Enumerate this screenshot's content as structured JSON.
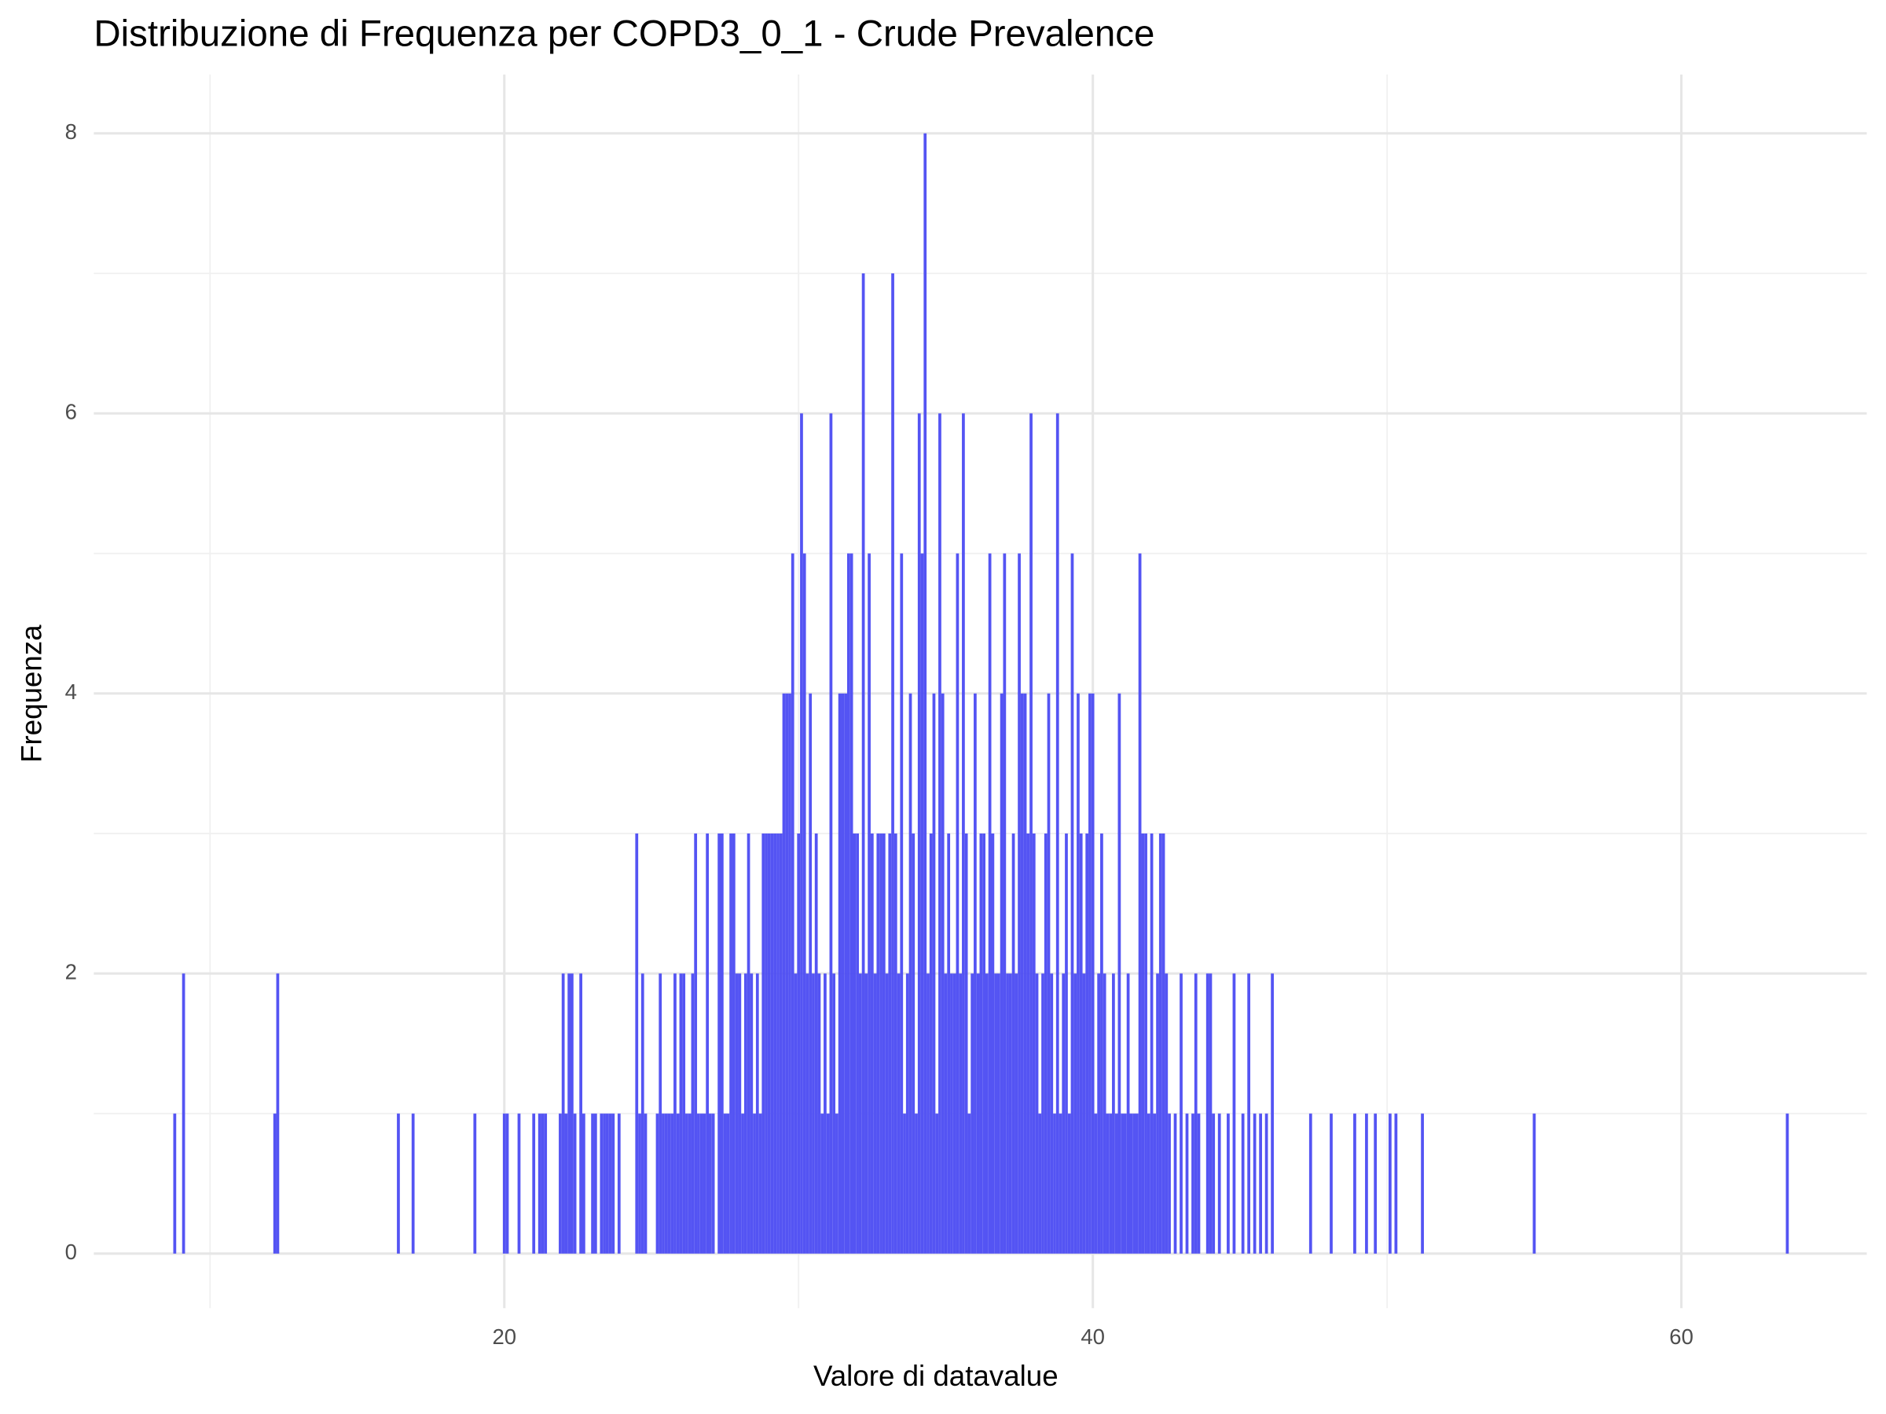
{
  "chart_data": {
    "type": "histogram",
    "title": "Distribuzione di Frequenza per COPD3_0_1 - Crude Prevalence",
    "x_label": "Valore di datavalue",
    "y_label": "Frequenza",
    "color": "#4b4bf2",
    "grid": true,
    "xlim": [
      6.05,
      66.3
    ],
    "xticks": [
      20,
      40,
      60
    ],
    "ylim": [
      -0.39,
      8.42
    ],
    "yticks": [
      0,
      2,
      4,
      6,
      8
    ],
    "x": [
      8.8,
      9.1,
      12.2,
      12.3,
      16.4,
      16.9,
      19.0,
      20.0,
      20.1,
      20.5,
      21.0,
      21.2,
      21.3,
      21.4,
      21.9,
      22.0,
      22.1,
      22.2,
      22.3,
      22.4,
      22.6,
      22.7,
      23.0,
      23.1,
      23.3,
      23.4,
      23.5,
      23.6,
      23.7,
      23.9,
      24.5,
      24.6,
      24.7,
      24.8,
      25.2,
      25.3,
      25.4,
      25.5,
      25.6,
      25.7,
      25.8,
      25.9,
      26.0,
      26.1,
      26.2,
      26.3,
      26.4,
      26.5,
      26.6,
      26.7,
      26.8,
      26.9,
      27.0,
      27.1,
      27.3,
      27.4,
      27.5,
      27.6,
      27.7,
      27.8,
      27.9,
      28.0,
      28.1,
      28.2,
      28.3,
      28.4,
      28.5,
      28.6,
      28.7,
      28.8,
      28.9,
      29.0,
      29.1,
      29.2,
      29.3,
      29.4,
      29.5,
      29.6,
      29.7,
      29.8,
      29.9,
      30.0,
      30.1,
      30.2,
      30.3,
      30.4,
      30.5,
      30.6,
      30.7,
      30.8,
      30.9,
      31.0,
      31.1,
      31.2,
      31.3,
      31.4,
      31.5,
      31.6,
      31.7,
      31.8,
      31.9,
      32.0,
      32.1,
      32.2,
      32.3,
      32.4,
      32.5,
      32.6,
      32.7,
      32.8,
      32.9,
      33.0,
      33.1,
      33.2,
      33.3,
      33.4,
      33.5,
      33.6,
      33.7,
      33.8,
      33.9,
      34.0,
      34.1,
      34.2,
      34.3,
      34.4,
      34.5,
      34.6,
      34.7,
      34.8,
      34.9,
      35.0,
      35.1,
      35.2,
      35.3,
      35.4,
      35.5,
      35.6,
      35.7,
      35.8,
      35.9,
      36.0,
      36.1,
      36.2,
      36.3,
      36.4,
      36.5,
      36.6,
      36.7,
      36.8,
      36.9,
      37.0,
      37.1,
      37.2,
      37.3,
      37.4,
      37.5,
      37.6,
      37.7,
      37.8,
      37.9,
      38.0,
      38.1,
      38.2,
      38.3,
      38.4,
      38.5,
      38.6,
      38.7,
      38.8,
      38.9,
      39.0,
      39.1,
      39.2,
      39.3,
      39.4,
      39.5,
      39.6,
      39.7,
      39.8,
      39.9,
      40.0,
      40.1,
      40.2,
      40.3,
      40.4,
      40.5,
      40.6,
      40.7,
      40.8,
      40.9,
      41.0,
      41.1,
      41.2,
      41.3,
      41.4,
      41.5,
      41.6,
      41.7,
      41.8,
      41.9,
      42.0,
      42.1,
      42.2,
      42.3,
      42.4,
      42.5,
      42.6,
      42.8,
      43.0,
      43.2,
      43.4,
      43.5,
      43.6,
      43.9,
      44.0,
      44.1,
      44.3,
      44.6,
      44.8,
      45.1,
      45.3,
      45.5,
      45.7,
      45.9,
      46.1,
      47.4,
      48.1,
      48.9,
      49.3,
      49.6,
      50.1,
      50.3,
      51.2,
      55.0,
      63.6
    ],
    "values": [
      1,
      2,
      1,
      2,
      1,
      1,
      1,
      1,
      1,
      1,
      1,
      1,
      1,
      1,
      1,
      2,
      1,
      2,
      2,
      1,
      2,
      1,
      1,
      1,
      1,
      1,
      1,
      1,
      1,
      1,
      3,
      1,
      2,
      1,
      1,
      2,
      1,
      1,
      1,
      1,
      2,
      1,
      2,
      2,
      1,
      1,
      2,
      3,
      1,
      1,
      1,
      3,
      1,
      1,
      3,
      3,
      1,
      1,
      3,
      3,
      2,
      2,
      1,
      2,
      3,
      2,
      1,
      2,
      1,
      3,
      3,
      3,
      3,
      3,
      3,
      3,
      4,
      4,
      4,
      5,
      2,
      3,
      6,
      5,
      2,
      4,
      2,
      3,
      2,
      1,
      2,
      1,
      6,
      2,
      1,
      4,
      4,
      4,
      5,
      5,
      3,
      3,
      2,
      7,
      2,
      5,
      3,
      2,
      3,
      3,
      3,
      2,
      3,
      7,
      3,
      2,
      5,
      1,
      2,
      4,
      3,
      1,
      6,
      5,
      8,
      2,
      3,
      4,
      1,
      6,
      4,
      2,
      3,
      2,
      2,
      5,
      2,
      6,
      3,
      1,
      2,
      4,
      2,
      3,
      3,
      2,
      5,
      3,
      2,
      2,
      4,
      5,
      2,
      2,
      3,
      2,
      5,
      4,
      4,
      3,
      6,
      3,
      2,
      1,
      2,
      3,
      4,
      2,
      1,
      6,
      1,
      2,
      3,
      1,
      5,
      2,
      4,
      3,
      2,
      3,
      4,
      4,
      1,
      2,
      3,
      2,
      1,
      1,
      2,
      1,
      4,
      1,
      1,
      2,
      1,
      1,
      1,
      5,
      3,
      3,
      1,
      3,
      1,
      2,
      3,
      3,
      2,
      1,
      1,
      2,
      1,
      1,
      2,
      1,
      2,
      2,
      1,
      1,
      1,
      2,
      1,
      2,
      1,
      1,
      1,
      2,
      1,
      1,
      1,
      1,
      1,
      1,
      1,
      1,
      1,
      1
    ]
  }
}
